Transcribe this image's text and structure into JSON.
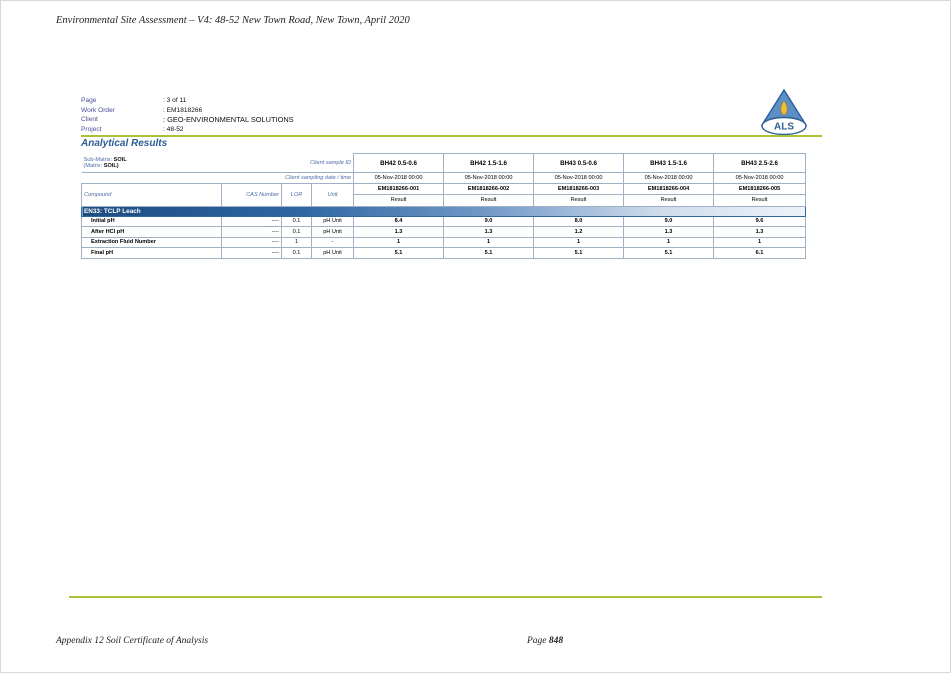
{
  "document": {
    "header": "Environmental Site Assessment – V4: 48-52 New Town Road, New Town, April 2020",
    "footer_left": "Appendix 12 Soil Certificate of Analysis",
    "footer_page_label": "Page",
    "footer_page_number": "848"
  },
  "certificate": {
    "meta": [
      {
        "label": "Page",
        "value": ": 3 of 11"
      },
      {
        "label": "Work Order",
        "value": ": EM1818266"
      },
      {
        "label": "Client",
        "value": ": GEO-ENVIRONMENTAL SOLUTIONS"
      },
      {
        "label": "Project",
        "value": ": 48-52"
      }
    ],
    "logo_text": "ALS",
    "title": "Analytical Results",
    "sub_matrix_label": "Sub-Matrix:",
    "sub_matrix_value": "SOIL",
    "matrix_label": "(Matrix:",
    "matrix_value": "SOIL)",
    "client_sample_id_label": "Client sample ID",
    "client_sampling_label": "Client sampling date / time",
    "col_compound": "Compound",
    "col_cas": "CAS Number",
    "col_lor": "LOR",
    "col_unit": "Unit",
    "samples": [
      {
        "id": "BH42 0.5-0.6",
        "date": "05-Nov-2018 00:00",
        "lab_id": "EM1818266-001",
        "result_label": "Result"
      },
      {
        "id": "BH42 1.5-1.6",
        "date": "05-Nov-2018 00:00",
        "lab_id": "EM1818266-002",
        "result_label": "Result"
      },
      {
        "id": "BH43 0.5-0.6",
        "date": "05-Nov-2018 00:00",
        "lab_id": "EM1818266-003",
        "result_label": "Result"
      },
      {
        "id": "BH43 1.5-1.6",
        "date": "05-Nov-2018 00:00",
        "lab_id": "EM1818266-004",
        "result_label": "Result"
      },
      {
        "id": "BH43 2.5-2.6",
        "date": "05-Nov-2018 00:00",
        "lab_id": "EM1818266-005",
        "result_label": "Result"
      }
    ],
    "section": "EN33: TCLP Leach",
    "rows": [
      {
        "compound": "Initial pH",
        "cas": "----",
        "lor": "0.1",
        "unit": "pH Unit",
        "results": [
          "8.4",
          "9.0",
          "8.0",
          "9.0",
          "9.6"
        ]
      },
      {
        "compound": "After HCl pH",
        "cas": "----",
        "lor": "0.1",
        "unit": "pH Unit",
        "results": [
          "1.3",
          "1.3",
          "1.2",
          "1.3",
          "1.3"
        ]
      },
      {
        "compound": "Extraction Fluid Number",
        "cas": "----",
        "lor": "1",
        "unit": "-",
        "results": [
          "1",
          "1",
          "1",
          "1",
          "1"
        ]
      },
      {
        "compound": "Final pH",
        "cas": "----",
        "lor": "0.1",
        "unit": "pH Unit",
        "results": [
          "5.1",
          "5.1",
          "5.1",
          "5.1",
          "6.1"
        ]
      }
    ]
  }
}
